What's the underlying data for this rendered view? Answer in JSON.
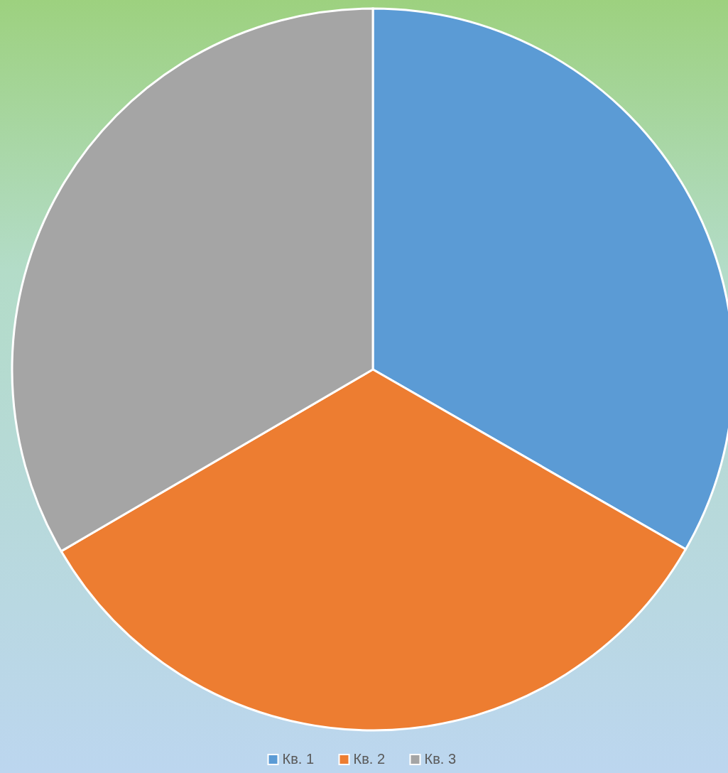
{
  "chart_data": {
    "type": "pie",
    "categories": [
      "Кв. 1",
      "Кв. 2",
      "Кв. 3"
    ],
    "values": [
      33.3,
      33.3,
      33.4
    ],
    "colors": [
      "#5b9bd5",
      "#ed7d31",
      "#a5a5a5"
    ],
    "legend": "bottom"
  }
}
